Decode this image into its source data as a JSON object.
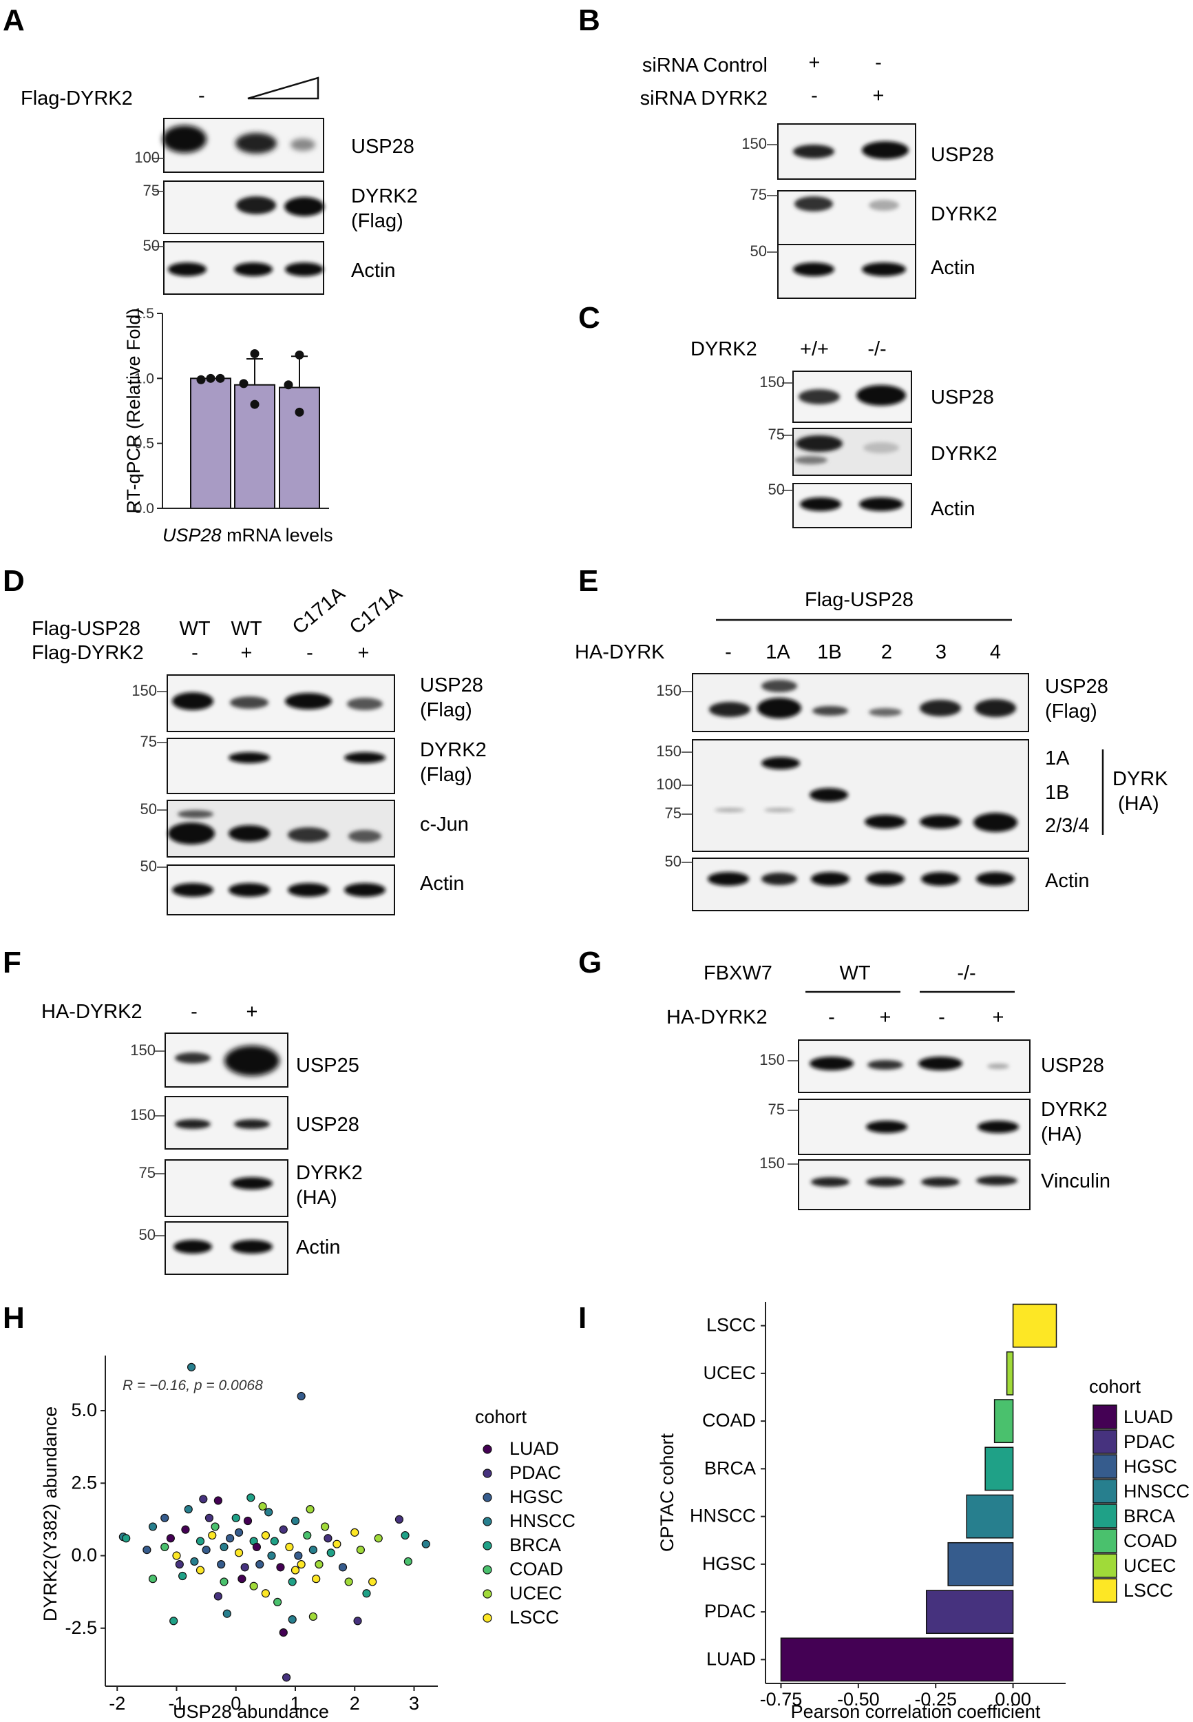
{
  "panels": {
    "A": {
      "letter": "A",
      "header": "Flag-DYRK2",
      "minus": "-",
      "mw": [
        "100",
        "75",
        "50"
      ],
      "rows": [
        "USP28",
        "DYRK2",
        "(Flag)",
        "Actin"
      ]
    },
    "B": {
      "letter": "B",
      "row1": "siRNA Control",
      "row1_signs": [
        "+",
        "-"
      ],
      "row2": "siRNA DYRK2",
      "row2_signs": [
        "-",
        "+"
      ],
      "mw": [
        "150",
        "75",
        "50"
      ],
      "rows": [
        "USP28",
        "DYRK2",
        "Actin"
      ]
    },
    "C": {
      "letter": "C",
      "header": "DYRK2",
      "cols": [
        "+/+",
        "-/-"
      ],
      "mw": [
        "150",
        "75",
        "50"
      ],
      "rows": [
        "USP28",
        "DYRK2",
        "Actin"
      ]
    },
    "D": {
      "letter": "D",
      "row1": "Flag-USP28",
      "row1_cols": [
        "WT",
        "WT",
        "C171A",
        "C171A"
      ],
      "row2": "Flag-DYRK2",
      "row2_signs": [
        "-",
        "+",
        "-",
        "+"
      ],
      "mw": [
        "150",
        "75",
        "50",
        "50"
      ],
      "rows": [
        "USP28",
        "(Flag)",
        "DYRK2",
        "(Flag)",
        "c-Jun",
        "Actin"
      ]
    },
    "E": {
      "letter": "E",
      "top": "Flag-USP28",
      "header": "HA-DYRK",
      "cols": [
        "-",
        "1A",
        "1B",
        "2",
        "3",
        "4"
      ],
      "mw": [
        "150",
        "150",
        "100",
        "75",
        "50"
      ],
      "rows": [
        "USP28",
        "(Flag)",
        "1A",
        "1B",
        "2/3/4",
        "DYRK",
        "(HA)",
        "Actin"
      ]
    },
    "F": {
      "letter": "F",
      "header": "HA-DYRK2",
      "signs": [
        "-",
        "+"
      ],
      "mw": [
        "150",
        "150",
        "75",
        "50"
      ],
      "rows": [
        "USP25",
        "USP28",
        "DYRK2",
        "(HA)",
        "Actin"
      ]
    },
    "G": {
      "letter": "G",
      "header": "FBXW7",
      "groups": [
        "WT",
        "-/-"
      ],
      "header2": "HA-DYRK2",
      "signs": [
        "-",
        "+",
        "-",
        "+"
      ],
      "mw": [
        "150",
        "75",
        "150"
      ],
      "rows": [
        "USP28",
        "DYRK2",
        "(HA)",
        "Vinculin"
      ]
    },
    "H": {
      "letter": "H"
    },
    "I": {
      "letter": "I"
    }
  },
  "chart_data": [
    {
      "id": "A-bar",
      "type": "bar",
      "ylabel": "RT-qPCR (Relative Fold)",
      "xlabel_italic": "USP28",
      "xlabel_rest": " mRNA levels",
      "values": [
        1.0,
        0.95,
        0.93
      ],
      "errors": [
        0.0,
        0.2,
        0.24
      ],
      "points": [
        [
          0.99,
          1.0,
          1.0
        ],
        [
          1.19,
          0.96,
          0.8
        ],
        [
          1.18,
          0.95,
          0.74
        ]
      ],
      "ylim": [
        0,
        1.5
      ],
      "yticks": [
        0.0,
        0.5,
        1.0,
        1.5
      ],
      "ytick_labels": [
        "0.0",
        "0.5",
        "1.0",
        "1.5"
      ],
      "color": "#a89bc4"
    },
    {
      "id": "H-scatter",
      "type": "scatter",
      "xlabel": "USP28 abundance",
      "ylabel": "DYRK2(Y382) abundance",
      "annotation": "R = −0.16, p = 0.0068",
      "xlim": [
        -2.2,
        3.4
      ],
      "ylim": [
        -4.5,
        6.9
      ],
      "xticks": [
        -2,
        -1,
        0,
        1,
        2,
        3
      ],
      "xtick_labels": [
        "-2",
        "-1",
        "0",
        "1",
        "2",
        "3"
      ],
      "yticks": [
        -2.5,
        0.0,
        2.5,
        5.0
      ],
      "ytick_labels": [
        "-2.5",
        "0.0",
        "2.5",
        "5.0"
      ],
      "legend_title": "cohort",
      "legend_position": "right",
      "cohorts": [
        "LUAD",
        "PDAC",
        "HGSC",
        "HNSCC",
        "BRCA",
        "COAD",
        "UCEC",
        "LSCC"
      ],
      "colors": [
        "#440154",
        "#46327e",
        "#365c8d",
        "#277f8e",
        "#1fa187",
        "#4ac16d",
        "#a0da39",
        "#fde725"
      ],
      "points": [
        [
          -0.75,
          6.5,
          3
        ],
        [
          1.1,
          5.5,
          2
        ],
        [
          0.85,
          -4.2,
          1
        ],
        [
          0.8,
          -2.65,
          0
        ],
        [
          -1.05,
          -2.25,
          4
        ],
        [
          2.05,
          -2.25,
          1
        ],
        [
          0.95,
          -2.2,
          3
        ],
        [
          1.3,
          -2.1,
          6
        ],
        [
          -0.15,
          -2.0,
          3
        ],
        [
          2.2,
          -1.3,
          4
        ],
        [
          2.75,
          1.25,
          1
        ],
        [
          2.85,
          0.7,
          4
        ],
        [
          3.2,
          0.4,
          3
        ],
        [
          2.9,
          -0.2,
          5
        ],
        [
          -1.9,
          0.65,
          3
        ],
        [
          -1.85,
          0.6,
          4
        ],
        [
          -1.4,
          1.0,
          3
        ],
        [
          -1.2,
          1.3,
          2
        ],
        [
          -0.55,
          1.95,
          1
        ],
        [
          -0.3,
          1.9,
          0
        ],
        [
          0.25,
          2.0,
          4
        ],
        [
          0.45,
          1.7,
          6
        ],
        [
          -0.8,
          1.6,
          3
        ],
        [
          1.25,
          1.6,
          6
        ],
        [
          1.5,
          1.0,
          6
        ],
        [
          2.4,
          0.6,
          6
        ],
        [
          2.1,
          0.2,
          6
        ],
        [
          2.3,
          -0.9,
          7
        ],
        [
          1.35,
          -0.8,
          7
        ],
        [
          1.9,
          -0.9,
          6
        ],
        [
          0.5,
          -1.3,
          7
        ],
        [
          0.3,
          -1.05,
          6
        ],
        [
          1.0,
          -0.5,
          7
        ],
        [
          0.05,
          0.1,
          7
        ],
        [
          -0.4,
          0.7,
          7
        ],
        [
          0.9,
          0.3,
          7
        ],
        [
          1.7,
          0.4,
          7
        ],
        [
          -0.6,
          -0.5,
          7
        ],
        [
          -1.0,
          0.0,
          7
        ],
        [
          0.5,
          0.7,
          7
        ],
        [
          1.1,
          -0.3,
          7
        ],
        [
          2.0,
          0.8,
          7
        ],
        [
          -1.2,
          0.3,
          5
        ],
        [
          -1.4,
          -0.8,
          5
        ],
        [
          -0.9,
          -0.7,
          4
        ],
        [
          0.3,
          0.5,
          4
        ],
        [
          -0.2,
          -0.9,
          5
        ],
        [
          0.7,
          -1.6,
          5
        ],
        [
          1.4,
          -0.3,
          6
        ],
        [
          1.6,
          0.1,
          4
        ],
        [
          0.2,
          1.2,
          0
        ],
        [
          -0.1,
          0.6,
          2
        ],
        [
          0.6,
          0.0,
          3
        ],
        [
          -0.5,
          0.2,
          2
        ],
        [
          0.15,
          -0.4,
          1
        ],
        [
          -0.85,
          0.9,
          0
        ],
        [
          1.0,
          1.2,
          3
        ],
        [
          -0.3,
          -1.4,
          1
        ],
        [
          0.4,
          -0.3,
          2
        ],
        [
          1.2,
          0.7,
          5
        ],
        [
          -0.7,
          -0.2,
          3
        ],
        [
          0.8,
          0.9,
          1
        ],
        [
          0.0,
          1.3,
          4
        ],
        [
          -1.1,
          0.6,
          0
        ],
        [
          1.8,
          -0.4,
          2
        ],
        [
          -0.45,
          1.3,
          1
        ],
        [
          0.35,
          0.3,
          0
        ],
        [
          -0.2,
          0.3,
          3
        ],
        [
          0.95,
          -0.9,
          4
        ],
        [
          -1.5,
          0.2,
          2
        ],
        [
          0.1,
          -0.8,
          0
        ],
        [
          1.55,
          0.6,
          1
        ],
        [
          0.55,
          1.5,
          3
        ],
        [
          -0.6,
          0.5,
          4
        ],
        [
          -0.25,
          -0.3,
          2
        ],
        [
          0.75,
          -0.4,
          0
        ],
        [
          -0.95,
          -0.3,
          1
        ],
        [
          1.3,
          0.2,
          3
        ],
        [
          0.05,
          0.8,
          2
        ],
        [
          -0.35,
          1.0,
          5
        ],
        [
          0.65,
          0.5,
          4
        ],
        [
          1.05,
          0.0,
          2
        ]
      ]
    },
    {
      "id": "I-bar",
      "type": "bar",
      "orientation": "horizontal",
      "xlabel": "Pearson correlation coefficient",
      "ylabel": "CPTAC cohort",
      "categories": [
        "LSCC",
        "UCEC",
        "COAD",
        "BRCA",
        "HNSCC",
        "HGSC",
        "PDAC",
        "LUAD"
      ],
      "values": [
        0.14,
        -0.02,
        -0.06,
        -0.09,
        -0.15,
        -0.21,
        -0.28,
        -0.75
      ],
      "colors": [
        "#fde725",
        "#a0da39",
        "#4ac16d",
        "#1fa187",
        "#277f8e",
        "#365c8d",
        "#46327e",
        "#440154"
      ],
      "xlim": [
        -0.8,
        0.17
      ],
      "xticks": [
        -0.75,
        -0.5,
        -0.25,
        0.0
      ],
      "xtick_labels": [
        "-0.75",
        "-0.50",
        "-0.25",
        "0.00"
      ],
      "legend_title": "cohort",
      "legend_position": "right",
      "legend": [
        "LUAD",
        "PDAC",
        "HGSC",
        "HNSCC",
        "BRCA",
        "COAD",
        "UCEC",
        "LSCC"
      ],
      "legend_colors": [
        "#440154",
        "#46327e",
        "#365c8d",
        "#277f8e",
        "#1fa187",
        "#4ac16d",
        "#a0da39",
        "#fde725"
      ]
    }
  ]
}
